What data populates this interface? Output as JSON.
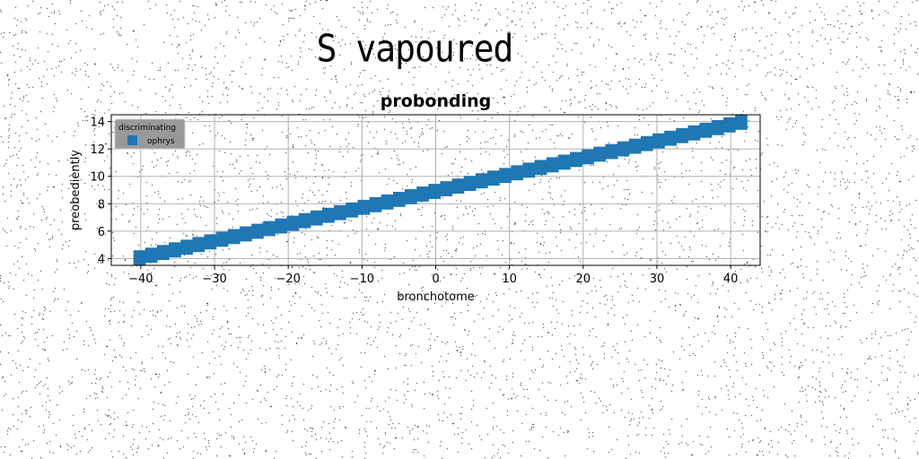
{
  "suptitle": "S vapoured",
  "chart_data": {
    "type": "bar",
    "title": "probonding",
    "xlabel": "bronchotome",
    "ylabel": "preobediently",
    "xlim": [
      -44,
      44
    ],
    "ylim": [
      3.5,
      14.5
    ],
    "xticks": [
      -40,
      -30,
      -20,
      -10,
      0,
      10,
      20,
      30,
      40
    ],
    "yticks": [
      4,
      6,
      8,
      10,
      12,
      14
    ],
    "grid": true,
    "legend": {
      "title": "discriminating",
      "placement": "top-left"
    },
    "colors": {
      "series": "#1f77b4",
      "grid": "#b0b0b0",
      "legend_bg": "#999999"
    },
    "series": [
      {
        "name": "ophrys",
        "x_start": -41.0,
        "x_step": 1.6,
        "count": 52,
        "low_start": 3.5,
        "high_start": 4.6,
        "slope_per_x": 0.1213
      }
    ]
  }
}
